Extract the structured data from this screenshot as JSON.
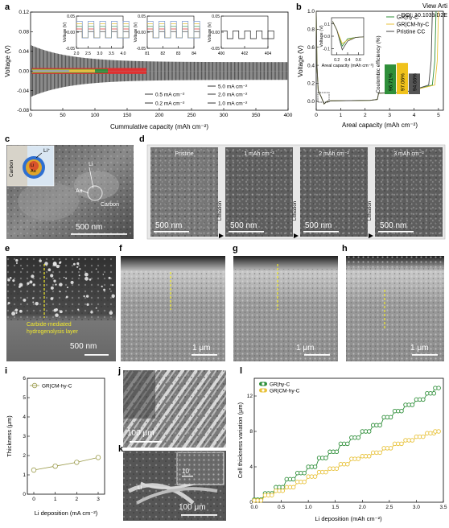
{
  "header": {
    "view_article": "View Arti",
    "doi": "DOI: 10.1039/D2E"
  },
  "panels": {
    "a": {
      "label": "a"
    },
    "b": {
      "label": "b"
    },
    "c": {
      "label": "c"
    },
    "d": {
      "label": "d"
    },
    "e": {
      "label": "e"
    },
    "f": {
      "label": "f"
    },
    "g": {
      "label": "g"
    },
    "h": {
      "label": "h"
    },
    "i": {
      "label": "i"
    },
    "j": {
      "label": "j"
    },
    "k": {
      "label": "k"
    },
    "l": {
      "label": "l"
    }
  },
  "chart_data": [
    {
      "id": "a",
      "type": "line",
      "xlabel": "Cummulative capacity (mAh cm⁻²)",
      "ylabel": "Voltage (V)",
      "xlim": [
        0,
        400
      ],
      "ylim": [
        -0.08,
        0.12
      ],
      "xticks": [
        "0",
        "50",
        "100",
        "150",
        "200",
        "250",
        "300",
        "350",
        "400"
      ],
      "yticks": [
        "-0.08",
        "-0.04",
        "0.00",
        "0.04",
        "0.08",
        "0.12"
      ],
      "legend": [
        "0.2 mA cm⁻²",
        "0.5 mA cm⁻²",
        "1.0 mA cm⁻²",
        "2.0 mA cm⁻²",
        "5.0 mA cm⁻²"
      ],
      "legend_labels_col1": [
        "0.5 mA cm⁻²",
        "0.2 mA cm⁻²"
      ],
      "legend_labels_col2": [
        "5.0 mA cm⁻²",
        "2.0 mA cm⁻²",
        "1.0 mA cm⁻²"
      ],
      "series_colors": [
        "#222222",
        "#e03030",
        "#2f8f3a",
        "#e8c23a",
        "#7d9bd0"
      ],
      "insets": [
        {
          "xlim": [
            2.0,
            4.0
          ],
          "ylim": [
            -0.05,
            0.05
          ],
          "xticks": [
            "2.0",
            "2.5",
            "3.0",
            "3.5",
            "4.0"
          ],
          "yticks": [
            "0.05",
            "0.00",
            "-0.05"
          ],
          "ylabel": "Voltage (V)"
        },
        {
          "xlim": [
            81,
            84
          ],
          "ylim": [
            -0.05,
            0.05
          ],
          "xticks": [
            "81",
            "82",
            "83",
            "84"
          ],
          "yticks": [
            "0.05",
            "0.00",
            "-0.05"
          ],
          "ylabel": "Voltage (V)"
        },
        {
          "xlim": [
            400,
            404
          ],
          "ylim": [
            -0.05,
            0.05
          ],
          "xticks": [
            "400",
            "402",
            "404"
          ],
          "yticks": [
            "0.05",
            "0.00",
            "-0.05"
          ],
          "ylabel": "Voltage (V)"
        }
      ]
    },
    {
      "id": "b",
      "type": "line",
      "xlabel": "Areal capacity (mAh cm⁻²)",
      "ylabel": "Voltage (V)",
      "xlim": [
        0,
        5.2
      ],
      "ylim": [
        -0.1,
        1.0
      ],
      "xticks": [
        "0",
        "1",
        "2",
        "3",
        "4",
        "5"
      ],
      "yticks": [
        "0.0",
        "0.2",
        "0.4",
        "0.6",
        "0.8",
        "1.0"
      ],
      "series": [
        {
          "name": "GR|hy-C",
          "color": "#2f8f3a"
        },
        {
          "name": "GR|CM-hy-C",
          "color": "#e8c23a"
        },
        {
          "name": "Pristine CC",
          "color": "#444444"
        }
      ],
      "inset": {
        "xlabel": "Areal capacity (mAh cm⁻²)",
        "ylabel": "Voltage (V)",
        "xticks": [
          "0.2",
          "0.4",
          "0.6"
        ],
        "yticks": [
          "0.1",
          "0.0",
          "-0.1"
        ]
      },
      "bars": {
        "ylabel": "Coulombic efficiency (%)",
        "categories": [
          "GR|hy-C",
          "GR|CM-hy-C",
          "Pristine CC"
        ],
        "values": [
          96.71,
          97.06,
          94.66
        ],
        "labels": [
          "96.71%",
          "97.06%",
          "94.66%"
        ],
        "colors": [
          "#2f8f3a",
          "#f0c21c",
          "#555555"
        ]
      }
    },
    {
      "id": "i",
      "type": "line",
      "xlabel": "Li deposition (mA cm⁻²)",
      "ylabel": "Thickness (μm)",
      "xlim": [
        -0.3,
        3.3
      ],
      "ylim": [
        0,
        6
      ],
      "xticks": [
        "0",
        "1",
        "2",
        "3"
      ],
      "yticks": [
        "0",
        "1",
        "2",
        "3",
        "4",
        "5",
        "6"
      ],
      "series": [
        {
          "name": "GR|CM-hy-C",
          "x": [
            0,
            1,
            2,
            3
          ],
          "y": [
            1.25,
            1.45,
            1.65,
            1.9
          ]
        }
      ]
    },
    {
      "id": "l",
      "type": "line",
      "xlabel": "Li deposition (mAh cm⁻²)",
      "ylabel": "Cell thickness variation (μm)",
      "xlim": [
        0,
        3.5
      ],
      "ylim": [
        0,
        14
      ],
      "xticks": [
        "0.0",
        "0.5",
        "1.0",
        "1.5",
        "2.0",
        "2.5",
        "3.0",
        "3.5"
      ],
      "yticks": [
        "0",
        "4",
        "8",
        "12"
      ],
      "series": [
        {
          "name": "GR|hy-C",
          "color": "#2f8f3a",
          "x": [
            0.0,
            0.2,
            0.4,
            0.6,
            0.8,
            1.0,
            1.2,
            1.4,
            1.6,
            1.8,
            2.0,
            2.2,
            2.4,
            2.6,
            2.8,
            3.0,
            3.2,
            3.35
          ],
          "y": [
            0.3,
            1.0,
            1.7,
            2.6,
            3.3,
            4.0,
            5.0,
            5.7,
            6.6,
            7.3,
            8.0,
            8.7,
            9.6,
            10.3,
            11.0,
            11.6,
            12.3,
            12.9
          ]
        },
        {
          "name": "GR|CM-hy-C",
          "color": "#e8c23a",
          "x": [
            0.0,
            0.2,
            0.4,
            0.6,
            0.8,
            1.0,
            1.2,
            1.4,
            1.6,
            1.8,
            2.0,
            2.2,
            2.4,
            2.6,
            2.8,
            3.0,
            3.2,
            3.35
          ],
          "y": [
            0.2,
            0.8,
            1.3,
            1.7,
            2.3,
            2.9,
            3.4,
            3.8,
            4.3,
            4.9,
            5.2,
            5.6,
            6.1,
            6.6,
            7.0,
            7.4,
            7.8,
            8.0
          ]
        }
      ]
    }
  ],
  "micrographs": {
    "c": {
      "scale": "500 nm",
      "labels": {
        "li": "Li",
        "au": "Au",
        "carbon": "Carbon"
      },
      "schematic": {
        "carbon": "Carbon",
        "li_au": "Li",
        "au": "Au",
        "li_plus": "Li⁺"
      }
    },
    "d": {
      "scale": "500 nm",
      "frames": [
        "Pristine",
        "1 mAh cm⁻²",
        "2 mAh cm⁻²",
        "3 mAh cm⁻²"
      ],
      "arrow_label": "Lithiation"
    },
    "e": {
      "scale": "500 nm",
      "annotation": "Carbide-mediated hydrogenolysis layer"
    },
    "f": {
      "scale": "1 μm"
    },
    "g": {
      "scale": "1 μm"
    },
    "h": {
      "scale": "1 μm"
    },
    "j": {
      "scale": "100 μm"
    },
    "k": {
      "scale": "100 μm",
      "inset_scale": "10",
      "label_li": "Li"
    }
  }
}
